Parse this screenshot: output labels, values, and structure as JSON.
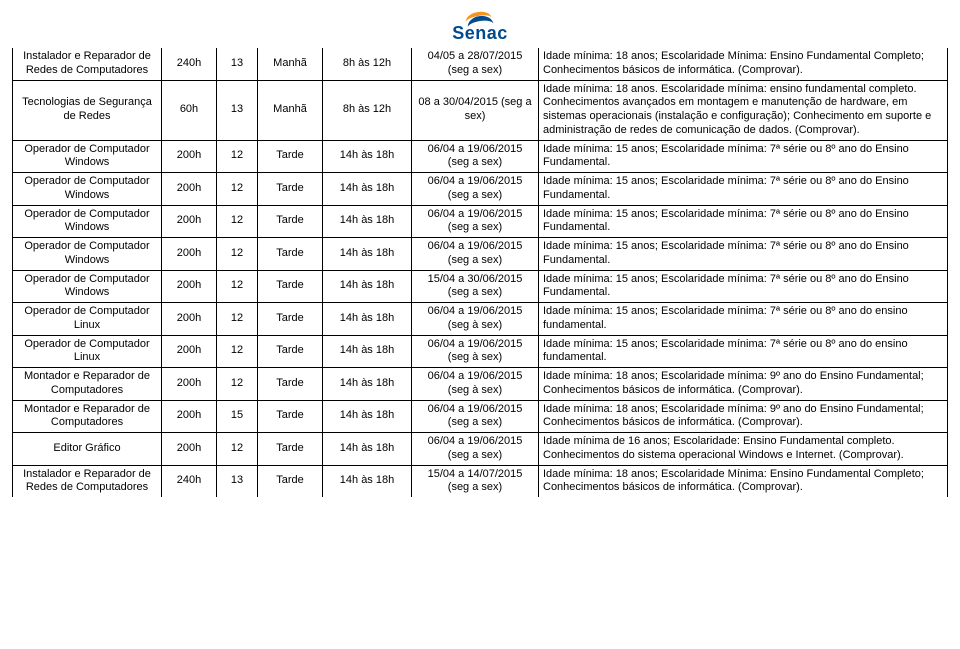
{
  "logo_text": "Senac",
  "rows": [
    {
      "course": "Instalador e Reparador de Redes de Computadores",
      "hours": "240h",
      "vac": "13",
      "shift": "Manhã",
      "time": "8h às 12h",
      "period": "04/05 a 28/07/2015 (seg a sex)",
      "req": "Idade mínima: 18 anos; Escolaridade Mínima: Ensino Fundamental Completo; Conhecimentos básicos de informática. (Comprovar)."
    },
    {
      "course": "Tecnologias de Segurança de Redes",
      "hours": "60h",
      "vac": "13",
      "shift": "Manhã",
      "time": "8h às 12h",
      "period": "08 a 30/04/2015 (seg a sex)",
      "req": "Idade mínima: 18 anos. Escolaridade mínima: ensino fundamental completo. Conhecimentos avançados em montagem e manutenção de hardware, em sistemas operacionais (instalação e configuração); Conhecimento em suporte e administração de redes de comunicação de dados. (Comprovar)."
    },
    {
      "course": "Operador de Computador Windows",
      "hours": "200h",
      "vac": "12",
      "shift": "Tarde",
      "time": "14h às 18h",
      "period": "06/04 a 19/06/2015 (seg a sex)",
      "req": "Idade mínima: 15 anos; Escolaridade mínima: 7ª série ou 8º ano do Ensino Fundamental."
    },
    {
      "course": "Operador de Computador Windows",
      "hours": "200h",
      "vac": "12",
      "shift": "Tarde",
      "time": "14h às 18h",
      "period": "06/04 a 19/06/2015 (seg a sex)",
      "req": "Idade mínima: 15 anos; Escolaridade mínima: 7ª série ou 8º ano do Ensino Fundamental."
    },
    {
      "course": "Operador de Computador Windows",
      "hours": "200h",
      "vac": "12",
      "shift": "Tarde",
      "time": "14h às 18h",
      "period": "06/04 a 19/06/2015 (seg a sex)",
      "req": "Idade mínima: 15 anos; Escolaridade mínima: 7ª série ou 8º ano do Ensino Fundamental."
    },
    {
      "course": "Operador de Computador Windows",
      "hours": "200h",
      "vac": "12",
      "shift": "Tarde",
      "time": "14h às 18h",
      "period": "06/04 a 19/06/2015 (seg a sex)",
      "req": "Idade mínima: 15 anos; Escolaridade mínima: 7ª série ou 8º ano do Ensino Fundamental."
    },
    {
      "course": "Operador de Computador Windows",
      "hours": "200h",
      "vac": "12",
      "shift": "Tarde",
      "time": "14h às 18h",
      "period": "15/04 a 30/06/2015 (seg a sex)",
      "req": "Idade mínima: 15 anos; Escolaridade mínima: 7ª série ou 8º ano do Ensino Fundamental."
    },
    {
      "course": "Operador de Computador Linux",
      "hours": "200h",
      "vac": "12",
      "shift": "Tarde",
      "time": "14h às 18h",
      "period": "06/04 a 19/06/2015 (seg à sex)",
      "req": "Idade mínima: 15 anos;  Escolaridade mínima: 7ª série ou 8º ano do ensino fundamental."
    },
    {
      "course": "Operador de Computador Linux",
      "hours": "200h",
      "vac": "12",
      "shift": "Tarde",
      "time": "14h às 18h",
      "period": "06/04 a 19/06/2015 (seg à sex)",
      "req": "Idade mínima: 15 anos;  Escolaridade mínima: 7ª série ou 8º ano do ensino fundamental."
    },
    {
      "course": "Montador e Reparador de Computadores",
      "hours": "200h",
      "vac": "12",
      "shift": "Tarde",
      "time": "14h às 18h",
      "period": "06/04 a 19/06/2015 (seg à sex)",
      "req": "Idade mínima: 18 anos; Escolaridade mínima: 9º ano do Ensino Fundamental; Conhecimentos básicos de informática. (Comprovar)."
    },
    {
      "course": "Montador e Reparador de Computadores",
      "hours": "200h",
      "vac": "15",
      "shift": "Tarde",
      "time": "14h às 18h",
      "period": "06/04 a 19/06/2015 (seg a sex)",
      "req": "Idade mínima: 18 anos; Escolaridade mínima: 9º ano do Ensino Fundamental; Conhecimentos básicos de informática. (Comprovar)."
    },
    {
      "course": "Editor Gráfico",
      "hours": "200h",
      "vac": "12",
      "shift": "Tarde",
      "time": "14h às 18h",
      "period": "06/04 a 19/06/2015 (seg a sex)",
      "req": "Idade mínima de 16 anos; Escolaridade: Ensino Fundamental completo. Conhecimentos do sistema operacional Windows e Internet. (Comprovar)."
    },
    {
      "course": "Instalador e Reparador de Redes de Computadores",
      "hours": "240h",
      "vac": "13",
      "shift": "Tarde",
      "time": "14h às 18h",
      "period": "15/04 a 14/07/2015 (seg a sex)",
      "req": "Idade mínima: 18 anos; Escolaridade Mínima: Ensino Fundamental Completo; Conhecimentos básicos de informática. (Comprovar)."
    }
  ]
}
